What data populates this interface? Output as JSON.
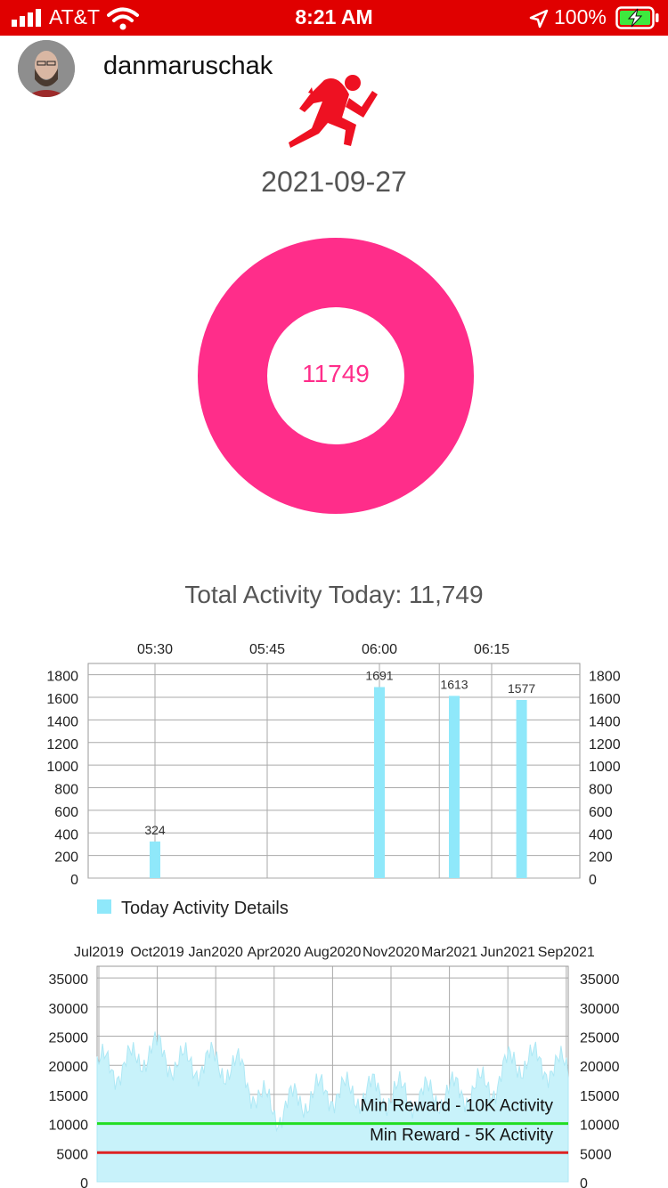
{
  "status_bar": {
    "carrier": "AT&T",
    "time": "8:21 AM",
    "battery": "100%",
    "background_color": "#e00000",
    "icons": [
      "signal-icon",
      "wifi-icon",
      "location-icon",
      "battery-charging-icon"
    ]
  },
  "profile": {
    "username": "danmaruschak",
    "avatar_icon": "avatar"
  },
  "activity_icon": "running-man-icon",
  "date": "2021-09-27",
  "donut": {
    "value": "11749",
    "ring_color": "#ff2d8a"
  },
  "total_activity": "Total Activity Today: 11,749",
  "chart_data": [
    {
      "type": "bar",
      "title": "",
      "x_axis_position": "top",
      "x_tick_labels": [
        "05:30",
        "05:45",
        "06:00",
        "06:15"
      ],
      "categories": [
        "05:30",
        "06:00",
        "06:10",
        "06:19"
      ],
      "values": [
        324,
        1691,
        1613,
        1577
      ],
      "data_labels": [
        "324",
        "1691",
        "1613",
        "1577"
      ],
      "y_tick_labels": [
        "1800",
        "1600",
        "1400",
        "1200",
        "1000",
        "800",
        "600",
        "400",
        "200",
        "0"
      ],
      "ylim": [
        0,
        1900
      ],
      "y_axes": "left and right",
      "grid": true,
      "legend": "bottom-left",
      "series": [
        {
          "name": "Today Activity Details",
          "color": "#8fe8fa"
        }
      ]
    },
    {
      "type": "area",
      "title": "",
      "x_axis_position": "top",
      "x_tick_labels": [
        "Jul2019",
        "Oct2019",
        "Jan2020",
        "Apr2020",
        "Aug2020",
        "Nov2020",
        "Mar2021",
        "Jun2021",
        "Sep2021"
      ],
      "y_tick_labels": [
        "35000",
        "30000",
        "25000",
        "20000",
        "15000",
        "10000",
        "5000",
        "0"
      ],
      "ylim": [
        0,
        37000
      ],
      "y_axes": "left and right",
      "grid": true,
      "series_color": "#c8f2fa",
      "approx_monthly_daily_steps": [
        {
          "month": "2019-07",
          "value": 20000
        },
        {
          "month": "2019-08",
          "value": 19500
        },
        {
          "month": "2019-09",
          "value": 20500
        },
        {
          "month": "2019-10",
          "value": 23000
        },
        {
          "month": "2019-11",
          "value": 21000
        },
        {
          "month": "2019-12",
          "value": 20000
        },
        {
          "month": "2020-01",
          "value": 20500
        },
        {
          "month": "2020-02",
          "value": 20000
        },
        {
          "month": "2020-03",
          "value": 19000
        },
        {
          "month": "2020-04",
          "value": 14000
        },
        {
          "month": "2020-05",
          "value": 12000
        },
        {
          "month": "2020-06",
          "value": 14000
        },
        {
          "month": "2020-07",
          "value": 15000
        },
        {
          "month": "2020-08",
          "value": 15500
        },
        {
          "month": "2020-09",
          "value": 15000
        },
        {
          "month": "2020-10",
          "value": 15500
        },
        {
          "month": "2020-11",
          "value": 15000
        },
        {
          "month": "2020-12",
          "value": 15000
        },
        {
          "month": "2021-01",
          "value": 14500
        },
        {
          "month": "2021-02",
          "value": 15000
        },
        {
          "month": "2021-03",
          "value": 15500
        },
        {
          "month": "2021-04",
          "value": 16000
        },
        {
          "month": "2021-05",
          "value": 17000
        },
        {
          "month": "2021-06",
          "value": 21000
        },
        {
          "month": "2021-07",
          "value": 20500
        },
        {
          "month": "2021-08",
          "value": 20000
        },
        {
          "month": "2021-09",
          "value": 19000
        }
      ],
      "reference_lines": [
        {
          "label": "Min Reward - 10K Activity",
          "value": 10000,
          "color": "#22dd22"
        },
        {
          "label": "Min Reward - 5K Activity",
          "value": 5000,
          "color": "#dd2222"
        }
      ]
    }
  ]
}
